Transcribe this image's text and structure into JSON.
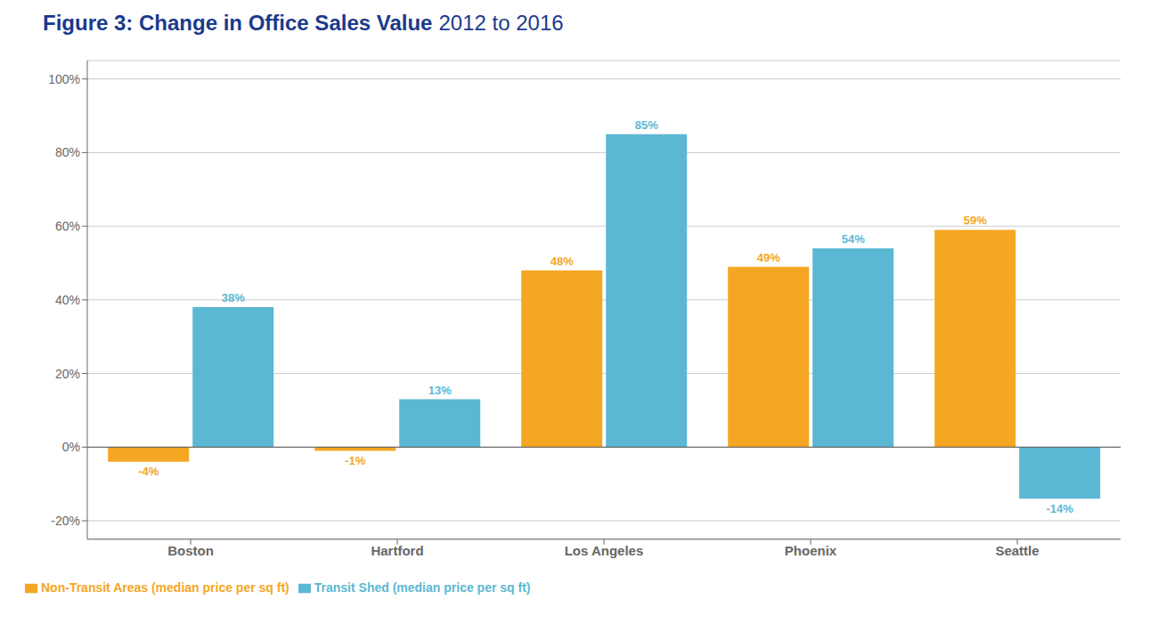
{
  "chart_data": {
    "type": "bar",
    "title": "Figure 3:  Change in Office Sales Value",
    "subtitle": "2012 to 2016",
    "title_color": "#1B3A8C",
    "categories": [
      "Boston",
      "Hartford",
      "Los Angeles",
      "Phoenix",
      "Seattle"
    ],
    "series": [
      {
        "name": "Non-Transit Areas (median price per sq ft)",
        "color": "#F5A623",
        "values": [
          -4,
          -1,
          48,
          49,
          59
        ],
        "value_labels": [
          "-4%",
          "-1%",
          "48%",
          "49%",
          "59%"
        ]
      },
      {
        "name": "Transit Shed (median price per sq ft)",
        "color": "#5BB8D4",
        "values": [
          38,
          13,
          85,
          54,
          -14
        ],
        "value_labels": [
          "38%",
          "13%",
          "85%",
          "54%",
          "-14%"
        ]
      }
    ],
    "ylim": [
      -25,
      105
    ],
    "yticks": [
      {
        "value": -20,
        "label": "-20%"
      },
      {
        "value": 0,
        "label": "0%"
      },
      {
        "value": 20,
        "label": "20%"
      },
      {
        "value": 40,
        "label": "40%"
      },
      {
        "value": 60,
        "label": "60%"
      },
      {
        "value": 80,
        "label": "80%"
      },
      {
        "value": 100,
        "label": "100%"
      }
    ],
    "grid": true,
    "legend": "lower left",
    "data_labels": true
  }
}
